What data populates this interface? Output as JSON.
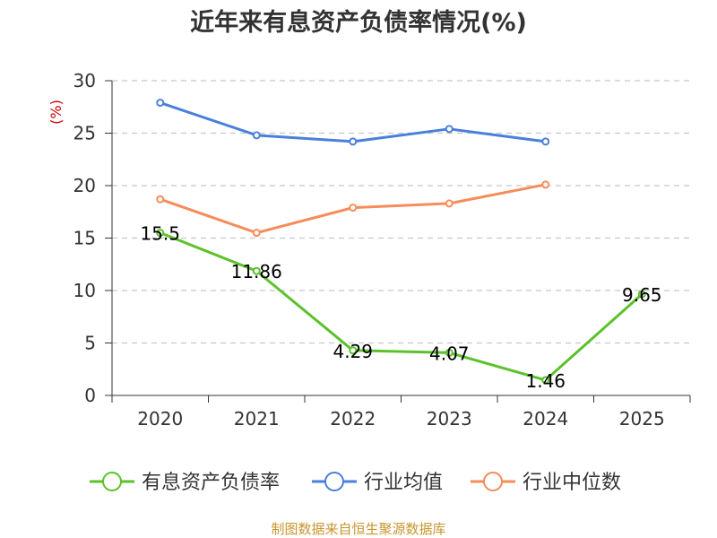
{
  "chart_data": {
    "type": "line",
    "title": "近年来有息资产负债率情况(%)",
    "ylabel": "(%)",
    "xlabel": "",
    "ylim": [
      0,
      30
    ],
    "yticks": [
      0,
      5,
      10,
      15,
      20,
      25,
      30
    ],
    "grid": "horizontal-dashed",
    "categories": [
      "2020",
      "2021",
      "2022",
      "2023",
      "2024",
      "2025"
    ],
    "series": [
      {
        "name": "有息资产负债率",
        "color": "#5cc12b",
        "values": [
          15.5,
          11.86,
          4.29,
          4.07,
          1.46,
          9.65
        ],
        "labels": [
          "15.5",
          "11.86",
          "4.29",
          "4.07",
          "1.46",
          "9.65"
        ]
      },
      {
        "name": "行业均值",
        "color": "#4a7fdc",
        "values": [
          27.9,
          24.8,
          24.2,
          25.4,
          24.2,
          null
        ]
      },
      {
        "name": "行业中位数",
        "color": "#f68c59",
        "values": [
          18.7,
          15.5,
          17.9,
          18.3,
          20.1,
          null
        ]
      }
    ],
    "legend_position": "bottom",
    "source": "制图数据来自恒生聚源数据库"
  }
}
